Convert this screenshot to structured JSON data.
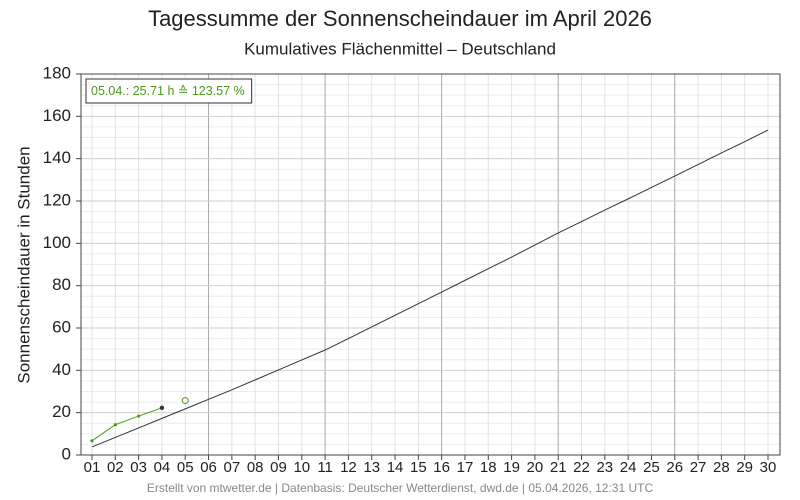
{
  "chart_data": {
    "type": "line",
    "title": "Tagessumme der Sonnenscheindauer im April 2026",
    "subtitle": "Kumulatives Flächenmittel – Deutschland",
    "y_label": "Sonnenscheindauer in Stunden",
    "footer": "Erstellt von mtwetter.de | Datenbasis: Deutscher Wetterdienst, dwd.de | 05.04.2026, 12:31 UTC",
    "categories": [
      "01",
      "02",
      "03",
      "04",
      "05",
      "06",
      "07",
      "08",
      "09",
      "10",
      "11",
      "12",
      "13",
      "14",
      "15",
      "16",
      "17",
      "18",
      "19",
      "20",
      "21",
      "22",
      "23",
      "24",
      "25",
      "26",
      "27",
      "28",
      "29",
      "30"
    ],
    "series": [
      {
        "color": "#333333",
        "values": [
          3.8,
          8.3,
          12.8,
          17.3,
          21.8,
          26.3,
          30.8,
          35.5,
          40.2,
          44.9,
          49.6,
          55,
          60.5,
          66,
          71.5,
          77,
          82.5,
          88,
          93.5,
          99.2,
          104.9,
          110.3,
          115.7,
          121,
          126.4,
          131.8,
          137.2,
          142.7,
          148,
          153.5
        ]
      },
      {
        "color": "#4a9a1a",
        "values": [
          6.7,
          14.3,
          18.4,
          22.3,
          null,
          null,
          null,
          null,
          null,
          null,
          null,
          null,
          null,
          null,
          null,
          null,
          null,
          null,
          null,
          null,
          null,
          null,
          null,
          null,
          null,
          null,
          null,
          null,
          null,
          null
        ]
      }
    ],
    "current": {
      "category": "05",
      "value": 25.71,
      "color": "#4a9a1a",
      "label": "05.04.: 25.71 h ≙ 123.57 %"
    },
    "ylim": [
      0,
      180
    ],
    "yticks": [
      0,
      20,
      40,
      60,
      80,
      100,
      120,
      140,
      160,
      180
    ],
    "grid": true
  }
}
